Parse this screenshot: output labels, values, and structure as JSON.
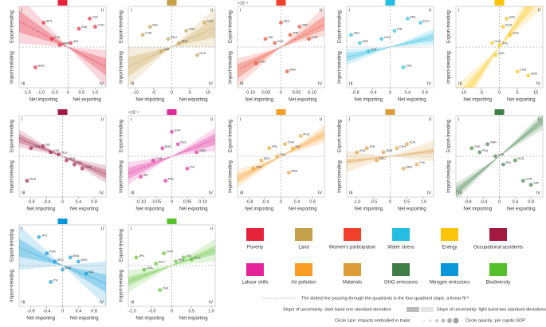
{
  "chart_data": [
    {
      "type": "scatter",
      "name": "Poverty",
      "color": "#e5243b",
      "xlim": [
        -1.8,
        1.4
      ],
      "ylim": [
        -1,
        1
      ],
      "xticks": [
        {
          "value": -1.5,
          "label": "-1.5"
        },
        {
          "value": -1,
          "label": "-1.0"
        },
        {
          "value": -0.5,
          "label": "-0.5"
        },
        0,
        0.5,
        {
          "value": 1,
          "label": "1.0"
        }
      ],
      "x": [
        -0.9,
        -0.6,
        -0.3,
        0.1,
        0.4,
        0.8,
        1.0,
        -1.2
      ],
      "y": [
        0.6,
        0.2,
        0.05,
        0.1,
        0.45,
        0.7,
        0.5,
        -0.5
      ],
      "labels": [
        "AFG",
        "ETH",
        "MMR",
        "IND",
        "PAK",
        "TZA",
        "COD",
        "BGD"
      ],
      "slope": -0.35,
      "dark_band": [
        -0.5,
        -0.2
      ],
      "light_band": [
        -0.7,
        -0.05
      ],
      "xlabel_left": "Net importing",
      "xlabel_right": "Net exporting",
      "ylabel_bottom": "Import-trending",
      "ylabel_top": "Export-trending",
      "quadrants": [
        "I",
        "II",
        "III",
        "IV"
      ]
    },
    {
      "type": "scatter",
      "name": "Land",
      "color": "#c5a04a",
      "xlim": [
        -12,
        12
      ],
      "ylim": [
        -1,
        1
      ],
      "xticks": [
        -10,
        -5,
        0,
        5,
        10
      ],
      "x": [
        -8,
        -6,
        -3,
        -1,
        2,
        4,
        7,
        9
      ],
      "y": [
        0.3,
        0.5,
        -0.1,
        0.2,
        0.1,
        0.4,
        -0.2,
        0.6
      ],
      "labels": [
        "CHN",
        "IND",
        "USA",
        "DEU",
        "BRA",
        "ARG",
        "RUS",
        "AUS"
      ],
      "slope": 0.04,
      "dark_band": [
        0.02,
        0.06
      ],
      "light_band": [
        0,
        0.08
      ],
      "xlabel_left": "Net importing",
      "xlabel_right": "Net exporting",
      "ylabel_bottom": "Import-trending",
      "ylabel_top": "Export-trending",
      "quadrants": [
        "I",
        "II",
        "III",
        "IV"
      ]
    },
    {
      "type": "scatter",
      "name": "Women's participation",
      "color": "#ef402b",
      "scale_note": "×10⁻³",
      "xlim": [
        -0.14,
        0.14
      ],
      "ylim": [
        -1,
        1
      ],
      "xticks": [
        {
          "value": -0.1,
          "label": "-0.10"
        },
        {
          "value": -0.05,
          "label": "-0.05"
        },
        0,
        0.05,
        {
          "value": 0.1,
          "label": "0.10"
        }
      ],
      "x": [
        -0.08,
        -0.05,
        -0.02,
        0.0,
        0.03,
        0.06,
        0.09,
        0.02
      ],
      "y": [
        -0.4,
        0.2,
        0.1,
        0.6,
        0.3,
        0.5,
        0.2,
        -0.6
      ],
      "labels": [
        "CHN",
        "IND",
        "USA",
        "SAU",
        "JPN",
        "DEU",
        "KOR",
        "BRA"
      ],
      "slope": 4,
      "dark_band": [
        3,
        5.5
      ],
      "light_band": [
        2,
        7
      ],
      "xlabel_left": "Net importing",
      "xlabel_right": "Net exporting",
      "ylabel_bottom": "Import-trending",
      "ylabel_top": "Export-trending",
      "quadrants": [
        "I",
        "II",
        "III",
        "IV"
      ]
    },
    {
      "type": "scatter",
      "name": "Water stress",
      "color": "#26bde2",
      "xlim": [
        -1,
        1
      ],
      "ylim": [
        -1,
        1
      ],
      "xticks": [
        -0.8,
        -0.4,
        0,
        0.4,
        0.8
      ],
      "x": [
        -0.9,
        -0.7,
        -0.5,
        -0.2,
        0.1,
        0.4,
        0.7,
        0.3
      ],
      "y": [
        0.3,
        0.1,
        -0.1,
        0.2,
        0.4,
        0.7,
        0.6,
        -0.5
      ],
      "labels": [
        "SAU",
        "ARE",
        "QAT",
        "CHN",
        "IND",
        "PAK",
        "EGY",
        "USA"
      ],
      "slope": 0.25,
      "dark_band": [
        0.15,
        0.35
      ],
      "light_band": [
        0.05,
        0.45
      ],
      "xlabel_left": "Net importing",
      "xlabel_right": "Net exporting",
      "ylabel_bottom": "Import-trending",
      "ylabel_top": "Export-trending",
      "quadrants": [
        "I",
        "II",
        "III",
        "IV"
      ]
    },
    {
      "type": "scatter",
      "name": "Energy",
      "color": "#fcc30b",
      "xlim": [
        -12,
        12
      ],
      "ylim": [
        -1,
        1
      ],
      "xticks": [
        -10,
        -5,
        0,
        5,
        10
      ],
      "x": [
        -2,
        -1,
        0,
        1,
        2,
        3,
        5,
        8
      ],
      "y": [
        0.1,
        -0.2,
        0.05,
        0.5,
        0.7,
        0.3,
        -0.6,
        -0.7
      ],
      "labels": [
        "CHN",
        "USA",
        "JPN",
        "RUS",
        "SAU",
        "AUS",
        "CAN",
        "NOR"
      ],
      "slope": 0.12,
      "dark_band": [
        0.1,
        0.14
      ],
      "light_band": [
        0.08,
        0.16
      ],
      "xlabel_left": "Net importing",
      "xlabel_right": "Net exporting",
      "ylabel_bottom": "Import-trending",
      "ylabel_top": "Export-trending",
      "quadrants": [
        "I",
        "II",
        "III",
        "IV"
      ]
    },
    {
      "type": "scatter",
      "name": "Occupational accidents",
      "color": "#a21942",
      "xlim": [
        -1.1,
        1.1
      ],
      "ylim": [
        -1,
        1
      ],
      "xticks": [
        -0.8,
        -0.4,
        0,
        0.4,
        0.8
      ],
      "x": [
        -0.8,
        -0.5,
        -0.3,
        -0.1,
        0.1,
        0.3,
        0.5,
        -0.9
      ],
      "y": [
        0.2,
        0.25,
        0.1,
        0.05,
        -0.1,
        -0.2,
        -0.3,
        -0.6
      ],
      "labels": [
        "CHN",
        "IND",
        "USA",
        "DEU",
        "BRA",
        "IDN",
        "VNM",
        "NGA"
      ],
      "slope": -0.4,
      "dark_band": [
        -0.5,
        -0.3
      ],
      "light_band": [
        -0.6,
        -0.2
      ],
      "xlabel_left": "Net importing",
      "xlabel_right": "Net exporting",
      "ylabel_bottom": "Import-trending",
      "ylabel_top": "Export-trending",
      "quadrants": [
        "I",
        "II",
        "III",
        "IV"
      ]
    },
    {
      "type": "scatter",
      "name": "Labour skills",
      "color": "#e5249a",
      "scale_note": "×10⁻²",
      "xlim": [
        -0.14,
        0.14
      ],
      "ylim": [
        -1,
        1
      ],
      "xticks": [
        {
          "value": -0.1,
          "label": "-0.10"
        },
        {
          "value": -0.05,
          "label": "-0.05"
        },
        0,
        0.05,
        {
          "value": 0.1,
          "label": "0.10"
        }
      ],
      "x": [
        -0.1,
        -0.06,
        -0.03,
        0,
        0.02,
        0.05,
        0.08,
        -0.02
      ],
      "y": [
        -0.5,
        -0.1,
        0.2,
        0.6,
        0.3,
        -0.3,
        0.1,
        -0.6
      ],
      "labels": [
        "IND",
        "CHN",
        "BGD",
        "USA",
        "DEU",
        "PHL",
        "GBR",
        "PAK"
      ],
      "slope": 3,
      "dark_band": [
        2,
        4
      ],
      "light_band": [
        1,
        5
      ],
      "xlabel_left": "Net importing",
      "xlabel_right": "Net exporting",
      "ylabel_bottom": "Import-trending",
      "ylabel_top": "Export-trending",
      "quadrants": [
        "I",
        "II",
        "III",
        "IV"
      ]
    },
    {
      "type": "scatter",
      "name": "Air pollution",
      "color": "#f99d26",
      "xlim": [
        -1.1,
        1.1
      ],
      "ylim": [
        -1,
        1
      ],
      "xticks": [
        -0.8,
        -0.4,
        0,
        0.4,
        0.8
      ],
      "x": [
        -0.7,
        -0.5,
        -0.3,
        -0.1,
        0.1,
        0.3,
        0.5,
        0.2
      ],
      "y": [
        -0.3,
        -0.1,
        0.2,
        0.0,
        0.3,
        0.2,
        0.5,
        -0.4
      ],
      "labels": [
        "USA",
        "DEU",
        "JPN",
        "FRA",
        "CHN",
        "IND",
        "RUS",
        "BRA"
      ],
      "slope": 0.5,
      "dark_band": [
        0.4,
        0.6
      ],
      "light_band": [
        0.3,
        0.7
      ],
      "xlabel_left": "Net importing",
      "xlabel_right": "Net exporting",
      "ylabel_bottom": "Import-trending",
      "ylabel_top": "Export-trending",
      "quadrants": [
        "I",
        "II",
        "III",
        "IV"
      ]
    },
    {
      "type": "scatter",
      "name": "Materials",
      "color": "#dd9b3a",
      "xlim": [
        -1.3,
        1.3
      ],
      "ylim": [
        -1,
        1
      ],
      "xticks": [
        {
          "value": -1,
          "label": "-1.0"
        },
        {
          "value": -0.5,
          "label": "-0.5"
        },
        0,
        0.5,
        {
          "value": 1,
          "label": "1.0"
        }
      ],
      "x": [
        -1,
        -0.7,
        -0.4,
        -0.2,
        0.2,
        0.5,
        0.8,
        0.4
      ],
      "y": [
        0.1,
        0.2,
        -0.1,
        0.1,
        0.2,
        0.3,
        -0.2,
        -0.3
      ],
      "labels": [
        "USA",
        "JPN",
        "DEU",
        "GBR",
        "CHN",
        "AUS",
        "CHL",
        "BRA"
      ],
      "slope": 0.1,
      "dark_band": [
        0.05,
        0.15
      ],
      "light_band": [
        -0.1,
        0.3
      ],
      "xlabel_left": "Net importing",
      "xlabel_right": "Net exporting",
      "ylabel_bottom": "Import-trending",
      "ylabel_top": "Export-trending",
      "quadrants": [
        "I",
        "II",
        "III",
        "IV"
      ]
    },
    {
      "type": "scatter",
      "name": "GHG emissions",
      "color": "#3f7e44",
      "xlim": [
        -1.1,
        1.1
      ],
      "ylim": [
        -1,
        1
      ],
      "xticks": [
        -0.8,
        -0.4,
        0,
        0.4,
        0.8
      ],
      "x": [
        -0.7,
        -0.5,
        -0.3,
        -0.1,
        0.1,
        0.4,
        0.6,
        0.8
      ],
      "y": [
        0.2,
        0.1,
        0.3,
        0.0,
        -0.2,
        -0.1,
        -0.6,
        -0.7
      ],
      "labels": [
        "CHE",
        "FRA",
        "GBR",
        "USA",
        "IND",
        "RUS",
        "CHN",
        "ZAF"
      ],
      "slope": 0.8,
      "dark_band": [
        0.7,
        0.9
      ],
      "light_band": [
        0.6,
        1.0
      ],
      "xlabel_left": "Net importing",
      "xlabel_right": "Net exporting",
      "ylabel_bottom": "Import-trending",
      "ylabel_top": "Export-trending",
      "quadrants": [
        "I",
        "II",
        "III",
        "IV"
      ]
    },
    {
      "type": "scatter",
      "name": "Nitrogen emissions",
      "color": "#0a97d9",
      "xlim": [
        -1.1,
        1.1
      ],
      "ylim": [
        -1,
        1
      ],
      "xticks": [
        -0.8,
        -0.4,
        0,
        0.4,
        0.8
      ],
      "x": [
        -0.6,
        -0.4,
        -0.2,
        0,
        0.2,
        0.4,
        0.6,
        -0.3
      ],
      "y": [
        0.7,
        0.3,
        0.1,
        -0.1,
        0.2,
        0.1,
        -0.2,
        -0.4
      ],
      "labels": [
        "JPN",
        "KOR",
        "DEU",
        "USA",
        "BRA",
        "ARG",
        "NZL",
        "ITA"
      ],
      "slope": -0.4,
      "dark_band": [
        -0.6,
        -0.2
      ],
      "light_band": [
        -0.9,
        0.1
      ],
      "xlabel_left": "Net importing",
      "xlabel_right": "Net exporting",
      "ylabel_bottom": "Import-trending",
      "ylabel_top": "Export-trending",
      "quadrants": [
        "I",
        "II",
        "III",
        "IV"
      ]
    },
    {
      "type": "scatter",
      "name": "Biodiversity",
      "color": "#56c02b",
      "xlim": [
        -1.1,
        1.1
      ],
      "ylim": [
        -1,
        1
      ],
      "xticks": [
        {
          "value": -1,
          "label": "-1.0"
        },
        {
          "value": -0.5,
          "label": "-0.5"
        },
        0,
        0.5,
        {
          "value": 1,
          "label": "1.0"
        }
      ],
      "x": [
        -0.9,
        -0.7,
        -0.4,
        -0.2,
        0.1,
        0.3,
        0.5,
        -0.3
      ],
      "y": [
        0.2,
        -0.1,
        0.05,
        0.3,
        0.1,
        0.2,
        0.15,
        -0.6
      ],
      "labels": [
        "JPN",
        "USA",
        "DEU",
        "CHN",
        "BRA",
        "IDN",
        "MYS",
        "CHE"
      ],
      "slope": 0.35,
      "dark_band": [
        0.25,
        0.45
      ],
      "light_band": [
        0.1,
        0.6
      ],
      "xlabel_left": "Net importing",
      "xlabel_right": "Net exporting",
      "ylabel_bottom": "Import-trending",
      "ylabel_top": "Export-trending",
      "quadrants": [
        "I",
        "II",
        "III",
        "IV"
      ]
    }
  ],
  "notes": {
    "fit_line": "The dotted line passing through the quadrants is the four-quadrant slope, a linear fit ᵇ",
    "dark_band": "Slope of uncertainty: dark band one standard deviation",
    "light_band": "Slope of uncertainty: light band two standard deviations",
    "circle_size": "Circle size: impacts embodied in trade",
    "circle_opacity": "Circle opacity: per capita GDP"
  }
}
